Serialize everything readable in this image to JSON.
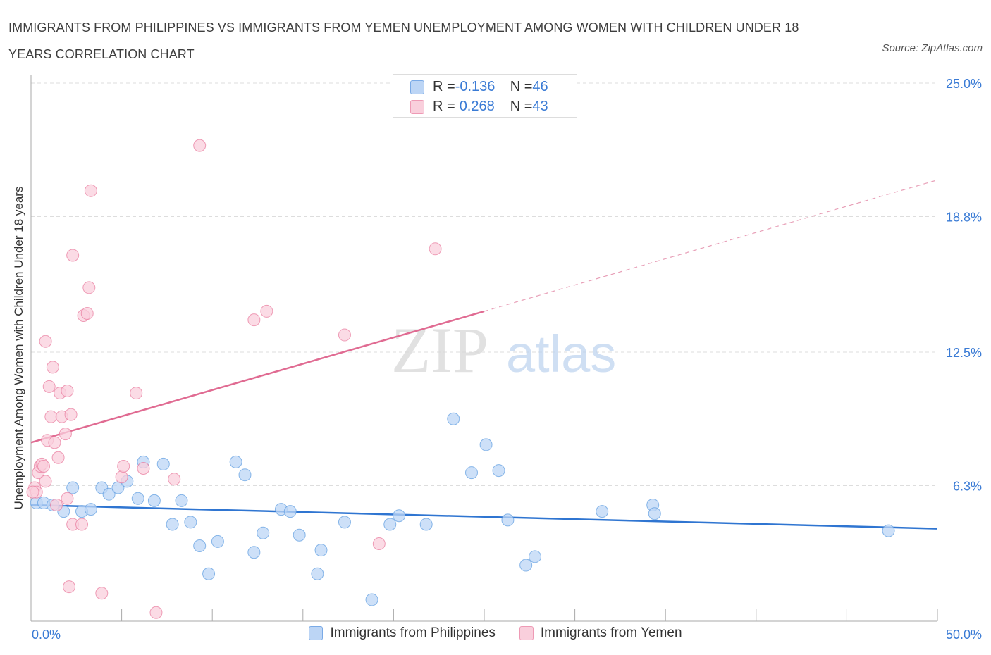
{
  "title": "IMMIGRANTS FROM PHILIPPINES VS IMMIGRANTS FROM YEMEN UNEMPLOYMENT AMONG WOMEN WITH CHILDREN UNDER 18 YEARS CORRELATION CHART",
  "source": "Source: ZipAtlas.com",
  "watermark": {
    "zip": "ZIP",
    "atlas": "atlas"
  },
  "legend_stats": [
    {
      "r_label": "R = ",
      "r_value": "-0.136",
      "n_label": "N = ",
      "n_value": "46",
      "color": "#a9c8f0"
    },
    {
      "r_label": "R = ",
      "r_value": "0.268",
      "n_label": "N = ",
      "n_value": "43",
      "color": "#f5b8cb"
    }
  ],
  "chart_data": {
    "type": "scatter",
    "xlabel": "",
    "ylabel": "Unemployment Among Women with Children Under 18 years",
    "xlim": [
      0,
      50
    ],
    "ylim": [
      0,
      25
    ],
    "x_tick_labels": [
      "0.0%",
      "50.0%"
    ],
    "y_ticks": [
      6.3,
      12.5,
      18.8,
      25.0
    ],
    "y_tick_labels": [
      "6.3%",
      "12.5%",
      "18.8%",
      "25.0%"
    ],
    "grid": true,
    "legend_position": "bottom",
    "series": [
      {
        "name": "Immigrants from Philippines",
        "color": "#5b9be0",
        "fill": "#bcd5f5",
        "trend": {
          "x": [
            0,
            50
          ],
          "y": [
            5.4,
            4.3
          ],
          "dashed_from": null
        },
        "points": [
          [
            0.3,
            5.5
          ],
          [
            0.7,
            5.5
          ],
          [
            1.2,
            5.4
          ],
          [
            1.8,
            5.1
          ],
          [
            2.3,
            6.2
          ],
          [
            2.8,
            5.1
          ],
          [
            3.3,
            5.2
          ],
          [
            3.9,
            6.2
          ],
          [
            4.3,
            5.9
          ],
          [
            4.8,
            6.2
          ],
          [
            5.3,
            6.5
          ],
          [
            5.9,
            5.7
          ],
          [
            6.2,
            7.4
          ],
          [
            6.8,
            5.6
          ],
          [
            7.3,
            7.3
          ],
          [
            7.8,
            4.5
          ],
          [
            8.3,
            5.6
          ],
          [
            8.8,
            4.6
          ],
          [
            9.3,
            3.5
          ],
          [
            9.8,
            2.2
          ],
          [
            10.3,
            3.7
          ],
          [
            11.3,
            7.4
          ],
          [
            11.8,
            6.8
          ],
          [
            12.3,
            3.2
          ],
          [
            12.8,
            4.1
          ],
          [
            13.8,
            5.2
          ],
          [
            14.3,
            5.1
          ],
          [
            14.8,
            4.0
          ],
          [
            15.8,
            2.2
          ],
          [
            16.0,
            3.3
          ],
          [
            17.3,
            4.6
          ],
          [
            18.8,
            1.0
          ],
          [
            19.8,
            4.5
          ],
          [
            20.3,
            4.9
          ],
          [
            21.8,
            4.5
          ],
          [
            23.3,
            9.4
          ],
          [
            24.3,
            6.9
          ],
          [
            25.1,
            8.2
          ],
          [
            25.8,
            7.0
          ],
          [
            26.3,
            4.7
          ],
          [
            27.3,
            2.6
          ],
          [
            27.8,
            3.0
          ],
          [
            31.5,
            5.1
          ],
          [
            34.3,
            5.4
          ],
          [
            34.4,
            5.0
          ],
          [
            47.3,
            4.2
          ]
        ]
      },
      {
        "name": "Immigrants from Yemen",
        "color": "#e8779b",
        "fill": "#f9cfdc",
        "trend": {
          "x": [
            0,
            50
          ],
          "y": [
            8.3,
            20.5
          ],
          "dashed_from": 25
        },
        "points": [
          [
            0.2,
            6.2
          ],
          [
            0.3,
            6.0
          ],
          [
            0.4,
            6.9
          ],
          [
            0.5,
            7.2
          ],
          [
            0.6,
            7.3
          ],
          [
            0.7,
            7.2
          ],
          [
            0.8,
            6.5
          ],
          [
            0.8,
            13.0
          ],
          [
            0.9,
            8.4
          ],
          [
            1.0,
            10.9
          ],
          [
            1.1,
            9.5
          ],
          [
            1.2,
            11.8
          ],
          [
            1.3,
            8.3
          ],
          [
            1.4,
            5.4
          ],
          [
            1.5,
            7.6
          ],
          [
            1.6,
            10.6
          ],
          [
            1.7,
            9.5
          ],
          [
            1.9,
            8.7
          ],
          [
            2.0,
            10.7
          ],
          [
            2.0,
            5.7
          ],
          [
            2.1,
            1.6
          ],
          [
            2.2,
            9.6
          ],
          [
            2.3,
            4.5
          ],
          [
            2.3,
            17.0
          ],
          [
            2.8,
            4.5
          ],
          [
            2.9,
            14.2
          ],
          [
            3.1,
            14.3
          ],
          [
            3.2,
            15.5
          ],
          [
            3.3,
            20.0
          ],
          [
            3.9,
            1.3
          ],
          [
            5.0,
            6.7
          ],
          [
            5.1,
            7.2
          ],
          [
            5.8,
            10.6
          ],
          [
            6.2,
            7.1
          ],
          [
            6.9,
            0.4
          ],
          [
            7.9,
            6.6
          ],
          [
            9.3,
            22.1
          ],
          [
            12.3,
            14.0
          ],
          [
            13.0,
            14.4
          ],
          [
            17.3,
            13.3
          ],
          [
            19.2,
            3.6
          ],
          [
            22.3,
            17.3
          ],
          [
            0.1,
            6.0
          ]
        ]
      }
    ]
  }
}
